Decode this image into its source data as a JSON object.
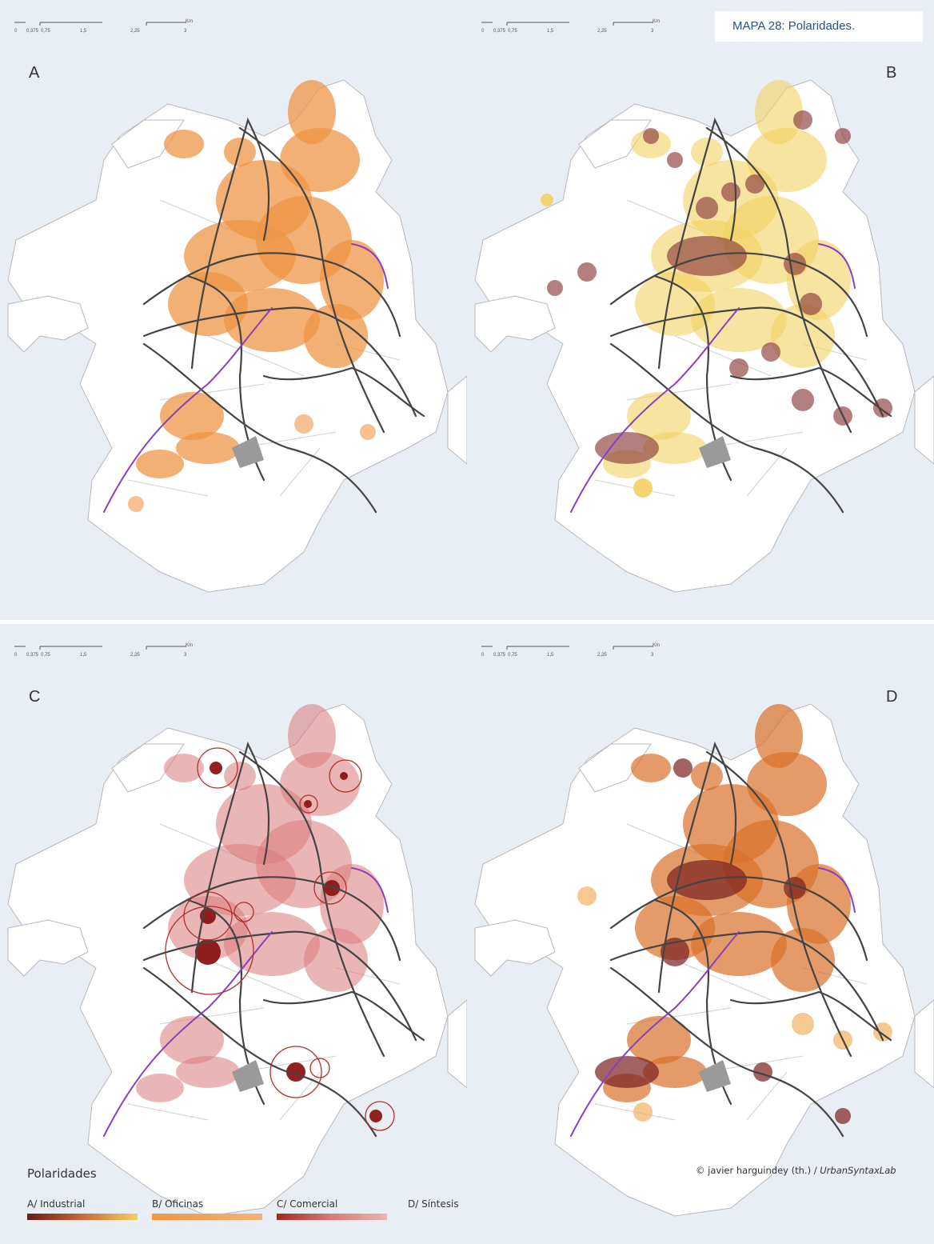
{
  "title": "MAPA 28: Polaridades.",
  "panels": [
    {
      "letter": "A",
      "scale_ticks": [
        "0",
        "0,375",
        "0,75",
        "1,5",
        "2,25",
        "3"
      ],
      "scale_unit": "Km"
    },
    {
      "letter": "B",
      "scale_ticks": [
        "0",
        "0,375",
        "0,75",
        "1,5",
        "2,25",
        "3"
      ],
      "scale_unit": "Km"
    },
    {
      "letter": "C",
      "scale_ticks": [
        "0",
        "0,375",
        "0,75",
        "1,5",
        "2,25",
        "3"
      ],
      "scale_unit": "Km"
    },
    {
      "letter": "D",
      "scale_ticks": [
        "0",
        "0,375",
        "0,75",
        "1,5",
        "2,25",
        "3"
      ],
      "scale_unit": "Km"
    }
  ],
  "legend": {
    "title": "Polaridades",
    "items": [
      {
        "label": "A/ Industrial",
        "ramp": [
          "#6b1a14",
          "#c9693a",
          "#f2d262"
        ]
      },
      {
        "label": "B/ Oficinas",
        "ramp": [
          "#ee9645",
          "#f5b279"
        ]
      },
      {
        "label": "C/ Comercial",
        "ramp": [
          "#a02a22",
          "#d87a78",
          "#ecb3b0"
        ]
      },
      {
        "label": "D/ Síntesis",
        "ramp": []
      }
    ]
  },
  "credit": {
    "author": "© javier harguindey (th.) / ",
    "lab": "UrbanSyntaxLab"
  },
  "colors": {
    "water": "#e9eef5",
    "land": "#ffffff",
    "roads": "#444444",
    "rail": "#8a3fbf",
    "industrial_dark": "#7a2020",
    "office": "#ee9645",
    "commercial": "#b2302a"
  }
}
